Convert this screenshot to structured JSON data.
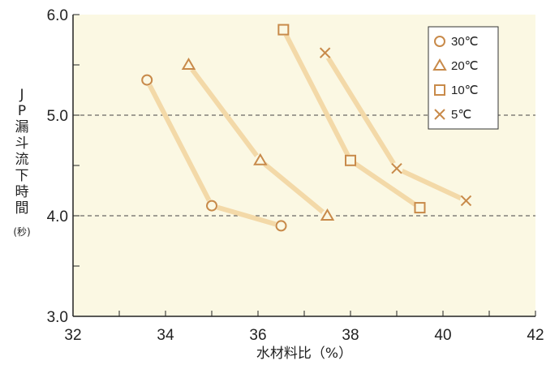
{
  "chart_data": {
    "type": "line",
    "xlabel": "水材料比（%）",
    "ylabel_chars": [
      "J",
      "P",
      "漏",
      "斗",
      "流",
      "下",
      "時",
      "間"
    ],
    "ylabel_unit": "(秒)",
    "xlim": [
      32,
      42
    ],
    "ylim": [
      3.0,
      6.0
    ],
    "x_ticks": [
      "32",
      "34",
      "36",
      "38",
      "40",
      "42"
    ],
    "y_ticks": [
      "3.0",
      "4.0",
      "5.0",
      "6.0"
    ],
    "y_ticks_values": [
      3.0,
      4.0,
      5.0,
      6.0
    ],
    "x_ticks_values": [
      32,
      34,
      36,
      38,
      40,
      42
    ],
    "dashed_gridlines": [
      4.0,
      5.0
    ],
    "legend_position": "top-right",
    "series": [
      {
        "name": "30℃",
        "marker": "circle",
        "points": [
          [
            33.6,
            5.35
          ],
          [
            35.0,
            4.1
          ],
          [
            36.5,
            3.9
          ]
        ]
      },
      {
        "name": "20℃",
        "marker": "triangle",
        "points": [
          [
            34.5,
            5.5
          ],
          [
            36.05,
            4.55
          ],
          [
            37.5,
            4.0
          ]
        ]
      },
      {
        "name": "10℃",
        "marker": "square",
        "points": [
          [
            36.55,
            5.85
          ],
          [
            38.0,
            4.55
          ],
          [
            39.5,
            4.08
          ]
        ]
      },
      {
        "name": "5℃",
        "marker": "cross",
        "points": [
          [
            37.45,
            5.62
          ],
          [
            39.0,
            4.47
          ],
          [
            40.5,
            4.15
          ]
        ]
      }
    ],
    "colors": {
      "line": "#f3d9a8",
      "marker": "#c88a4a",
      "plot_bg": "#fbf8e3"
    }
  }
}
